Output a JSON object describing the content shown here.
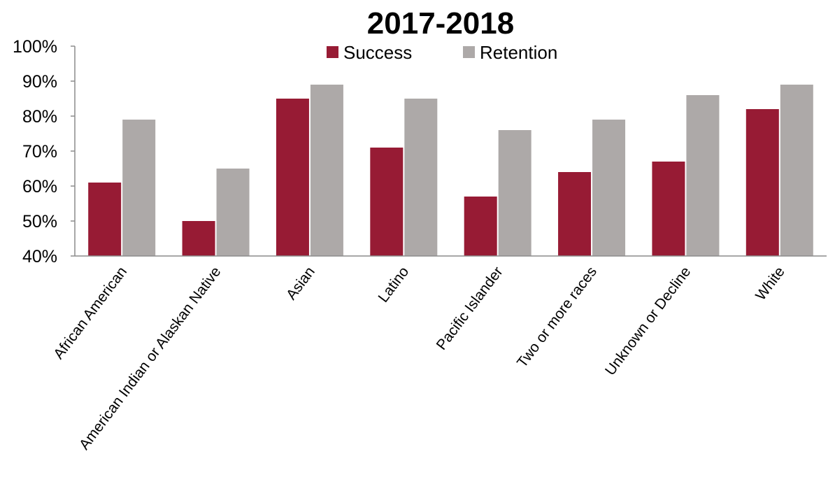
{
  "chart_data": {
    "type": "bar",
    "title": "2017-2018",
    "xlabel": "",
    "ylabel": "",
    "categories": [
      "African American",
      "American Indian or Alaskan Native",
      "Asian",
      "Latino",
      "Pacific Islander",
      "Two or more races",
      "Unknown or Decline",
      "White"
    ],
    "series": [
      {
        "name": "Success",
        "color": "#971B34",
        "values": [
          61,
          50,
          85,
          71,
          57,
          64,
          67,
          82
        ]
      },
      {
        "name": "Retention",
        "color": "#ADA9A8",
        "values": [
          79,
          65,
          89,
          85,
          76,
          79,
          86,
          89
        ]
      }
    ],
    "ylim": [
      40,
      100
    ],
    "yticks": [
      "40%",
      "50%",
      "60%",
      "70%",
      "80%",
      "90%",
      "100%"
    ],
    "grid": false,
    "legend_position": "top-center"
  }
}
